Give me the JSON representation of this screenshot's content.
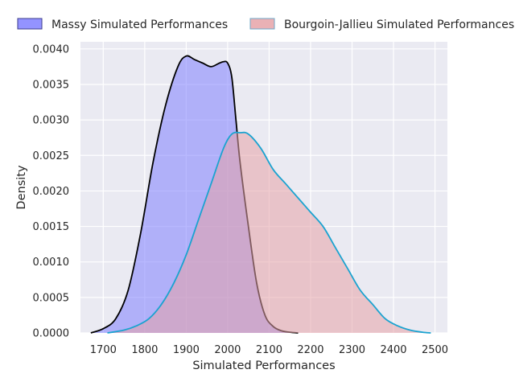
{
  "chart_data": {
    "type": "area",
    "title": "",
    "xlabel": "Simulated Performances",
    "ylabel": "Density",
    "xlim": [
      1645,
      2530
    ],
    "ylim": [
      0,
      0.0041
    ],
    "x_ticks": [
      1700,
      1800,
      1900,
      2000,
      2100,
      2200,
      2300,
      2400,
      2500
    ],
    "y_ticks": [
      "0.0000",
      "0.0005",
      "0.0010",
      "0.0015",
      "0.0020",
      "0.0025",
      "0.0030",
      "0.0035",
      "0.0040"
    ],
    "grid": true,
    "legend_position": "top",
    "series": [
      {
        "name": "Massy Simulated Performances",
        "fill_color": "#8080ff",
        "line_color": "#000000",
        "x": [
          1670,
          1700,
          1730,
          1760,
          1790,
          1820,
          1850,
          1880,
          1900,
          1920,
          1940,
          1960,
          1980,
          1990,
          2000,
          2010,
          2020,
          2030,
          2050,
          2070,
          2090,
          2110,
          2130,
          2150,
          2170
        ],
        "values": [
          0.0,
          6e-05,
          0.0002,
          0.0006,
          0.0014,
          0.0024,
          0.0032,
          0.00375,
          0.0039,
          0.00385,
          0.0038,
          0.00375,
          0.0038,
          0.00382,
          0.0038,
          0.0036,
          0.003,
          0.0024,
          0.0015,
          0.0007,
          0.00025,
          9e-05,
          3e-05,
          1e-05,
          0.0
        ]
      },
      {
        "name": "Bourgoin-Jallieu Simulated Performances",
        "fill_color": "#e6a3a8",
        "line_color": "#1ba3d0",
        "x": [
          1710,
          1750,
          1780,
          1810,
          1840,
          1870,
          1900,
          1930,
          1960,
          1990,
          2010,
          2030,
          2050,
          2080,
          2110,
          2140,
          2170,
          2200,
          2230,
          2260,
          2290,
          2320,
          2350,
          2380,
          2410,
          2440,
          2470,
          2490
        ],
        "values": [
          0.0,
          4e-05,
          0.0001,
          0.0002,
          0.0004,
          0.0007,
          0.0011,
          0.0016,
          0.0021,
          0.0026,
          0.0028,
          0.00282,
          0.0028,
          0.0026,
          0.0023,
          0.0021,
          0.0019,
          0.0017,
          0.0015,
          0.0012,
          0.0009,
          0.0006,
          0.0004,
          0.0002,
          0.0001,
          4e-05,
          1e-05,
          0.0
        ]
      }
    ]
  }
}
